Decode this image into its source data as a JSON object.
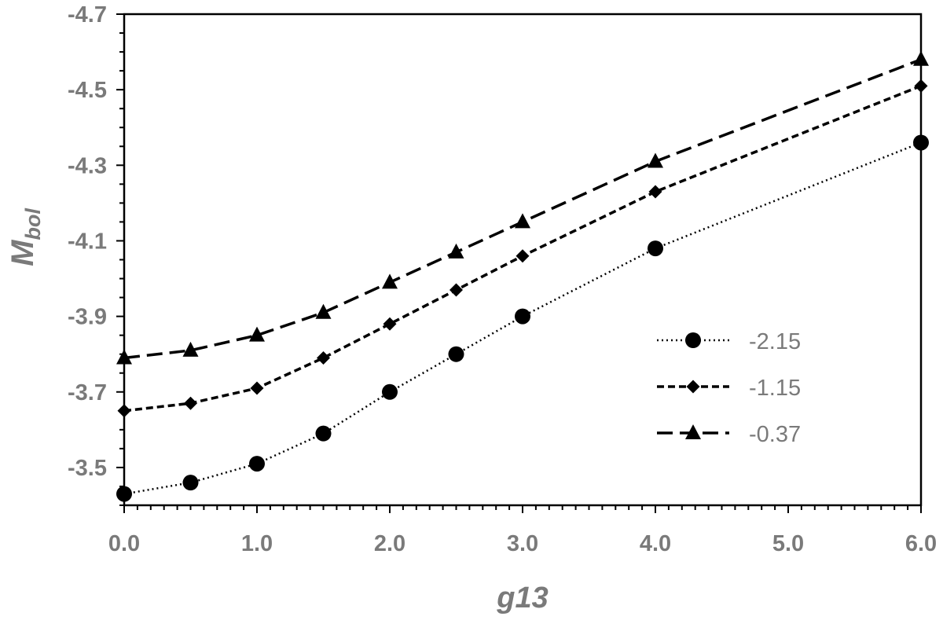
{
  "chart_data": {
    "type": "line",
    "xlabel": "g13",
    "ylabel_main": "M",
    "ylabel_sub": "bol",
    "xlim": [
      0,
      6
    ],
    "ylim": [
      -3.4,
      -4.7
    ],
    "y_inverted": true,
    "x_ticks": [
      "0.0",
      "1.0",
      "2.0",
      "3.0",
      "4.0",
      "5.0",
      "6.0"
    ],
    "x_tick_values": [
      0,
      1,
      2,
      3,
      4,
      5,
      6
    ],
    "y_ticks": [
      "-3.5",
      "-3.7",
      "-3.9",
      "-4.1",
      "-4.3",
      "-4.5",
      "-4.7"
    ],
    "y_tick_values": [
      -3.5,
      -3.7,
      -3.9,
      -4.1,
      -4.3,
      -4.5,
      -4.7
    ],
    "grid": false,
    "legend_position": "right",
    "x": [
      0,
      0.5,
      1.0,
      1.5,
      2.0,
      2.5,
      3.0,
      4.0,
      6.0
    ],
    "series": [
      {
        "name": "-2.15",
        "marker": "circle",
        "dash": "dotted",
        "values": [
          -3.43,
          -3.46,
          -3.51,
          -3.59,
          -3.7,
          -3.8,
          -3.9,
          -4.08,
          -4.36
        ]
      },
      {
        "name": "-1.15",
        "marker": "diamond",
        "dash": "short-dash",
        "values": [
          -3.65,
          -3.67,
          -3.71,
          -3.79,
          -3.88,
          -3.97,
          -4.06,
          -4.23,
          -4.51
        ]
      },
      {
        "name": "-0.37",
        "marker": "triangle",
        "dash": "long-dash",
        "values": [
          -3.79,
          -3.81,
          -3.85,
          -3.91,
          -3.99,
          -4.07,
          -4.15,
          -4.31,
          -4.58
        ]
      }
    ]
  }
}
